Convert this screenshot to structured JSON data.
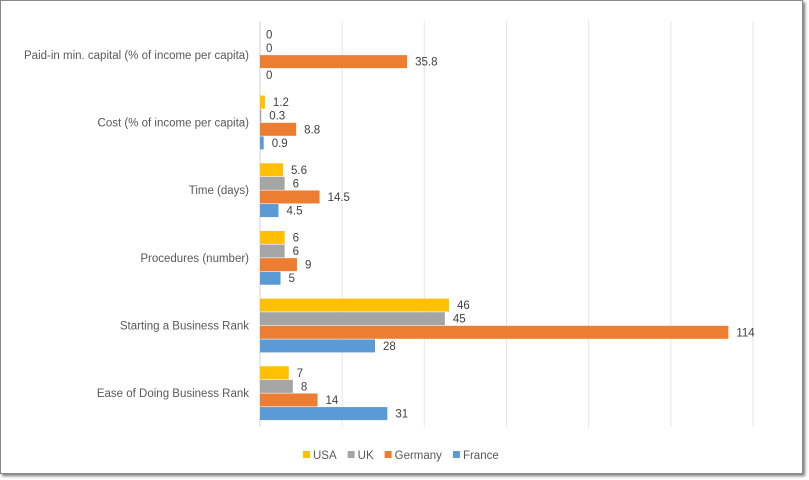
{
  "chart_data": {
    "type": "bar",
    "orientation": "horizontal",
    "categories": [
      "Paid-in min. capital (% of income per capita)",
      "Cost (% of income per capita)",
      "Time (days)",
      "Procedures (number)",
      "Starting a Business Rank",
      "Ease of Doing Business Rank"
    ],
    "series": [
      {
        "name": "USA",
        "color": "#FFC000",
        "values": [
          0,
          1.2,
          5.6,
          6,
          46,
          7
        ]
      },
      {
        "name": "UK",
        "color": "#A5A5A5",
        "values": [
          0,
          0.3,
          6,
          6,
          45,
          8
        ]
      },
      {
        "name": "Germany",
        "color": "#ED7D31",
        "values": [
          35.8,
          8.8,
          14.5,
          9,
          114,
          14
        ]
      },
      {
        "name": "France",
        "color": "#5B9BD5",
        "values": [
          0,
          0.9,
          4.5,
          5,
          28,
          31
        ]
      }
    ],
    "title": "",
    "xlabel": "",
    "ylabel": "",
    "xlim": [
      0,
      120
    ],
    "grid": true,
    "data_labels": true,
    "legend": "bottom"
  }
}
